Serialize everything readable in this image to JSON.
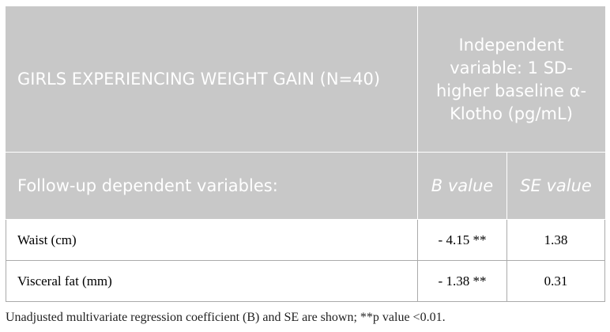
{
  "table": {
    "header": {
      "group": "GIRLS EXPERIENCING WEIGHT GAIN (N=40)",
      "independent": "Independent variable: 1 SD-higher baseline α-Klotho (pg/mL)",
      "row_label": "Follow-up dependent variables:",
      "columns": [
        "B value",
        "SE value"
      ]
    },
    "rows": [
      [
        "Waist (cm)",
        "- 4.15 **",
        "1.38"
      ],
      [
        "Visceral fat (mm)",
        "- 1.38 **",
        "0.31"
      ]
    ]
  },
  "footnote": "Unadjusted multivariate regression coefficient (B) and SE are shown; **p value <0.01."
}
